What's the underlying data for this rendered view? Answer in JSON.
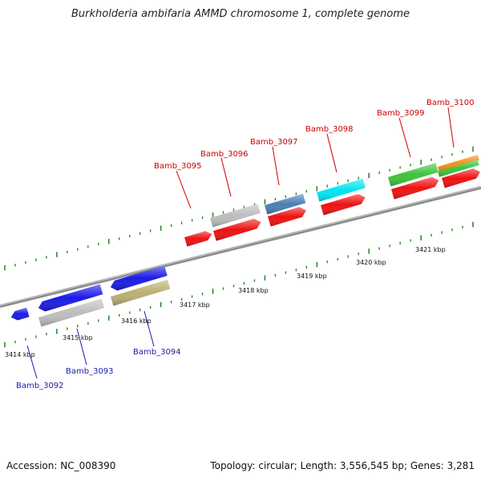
{
  "title": "Burkholderia ambifaria AMMD chromosome 1, complete genome",
  "accession": "Accession: NC_008390",
  "summary": "Topology: circular; Length: 3,556,545 bp; Genes: 3,281",
  "ticks": [
    "3414 kbp",
    "3415 kbp",
    "3416 kbp",
    "3417 kbp",
    "3418 kbp",
    "3419 kbp",
    "3420 kbp",
    "3421 kbp"
  ],
  "genes_top": [
    "Bamb_3095",
    "Bamb_3096",
    "Bamb_3097",
    "Bamb_3098",
    "Bamb_3099",
    "Bamb_3100"
  ],
  "genes_bottom": [
    "Bamb_3092",
    "Bamb_3093",
    "Bamb_3094"
  ],
  "colors": {
    "red": "#ee1111",
    "blue": "#1a1ae6",
    "gray": "#bdbdbd",
    "steelblue": "#4a7fb5",
    "cyan": "#00e5f0",
    "green": "#3cc43c",
    "orange": "#f0901a",
    "olive": "#b8b070",
    "tick": "#2a8a2a",
    "backbone": "#8a8a8a"
  }
}
